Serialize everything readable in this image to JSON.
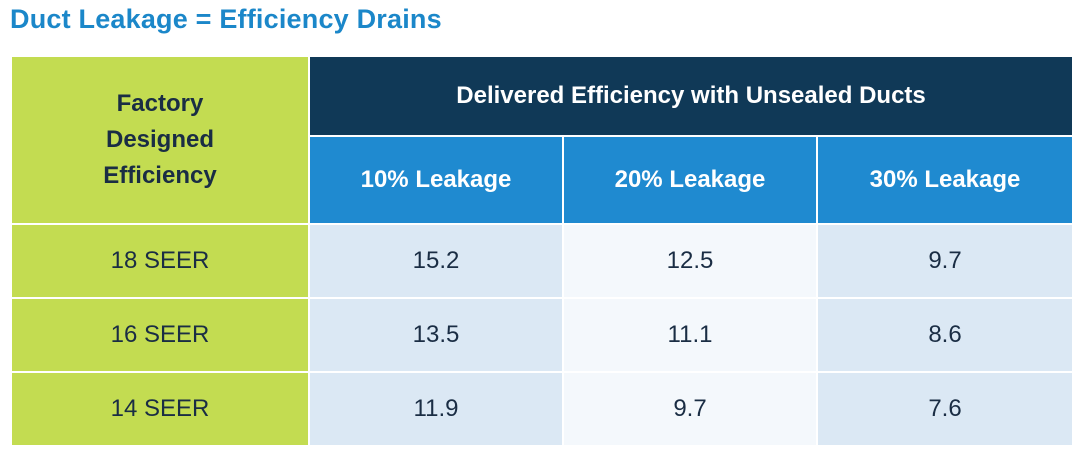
{
  "title": "Duct Leakage = Efficiency Drains",
  "colors": {
    "title": "#1b87c9",
    "lime": "#c3dc51",
    "navy": "#103957",
    "blue": "#1f8ad0",
    "cell_light": "#dbe8f4",
    "cell_lighter": "#f4f8fc",
    "text_dark": "#1a2d44"
  },
  "chart_data": {
    "type": "table",
    "title": "Duct Leakage = Efficiency Drains",
    "row_header_label": [
      "Factory",
      "Designed",
      "Efficiency"
    ],
    "group_header": "Delivered Efficiency with Unsealed Ducts",
    "columns": [
      "10% Leakage",
      "20% Leakage",
      "30% Leakage"
    ],
    "rows": [
      {
        "label": "18 SEER",
        "values": [
          "15.2",
          "12.5",
          "9.7"
        ]
      },
      {
        "label": "16 SEER",
        "values": [
          "13.5",
          "11.1",
          "8.6"
        ]
      },
      {
        "label": "14 SEER",
        "values": [
          "11.9",
          "9.7",
          "7.6"
        ]
      }
    ]
  }
}
